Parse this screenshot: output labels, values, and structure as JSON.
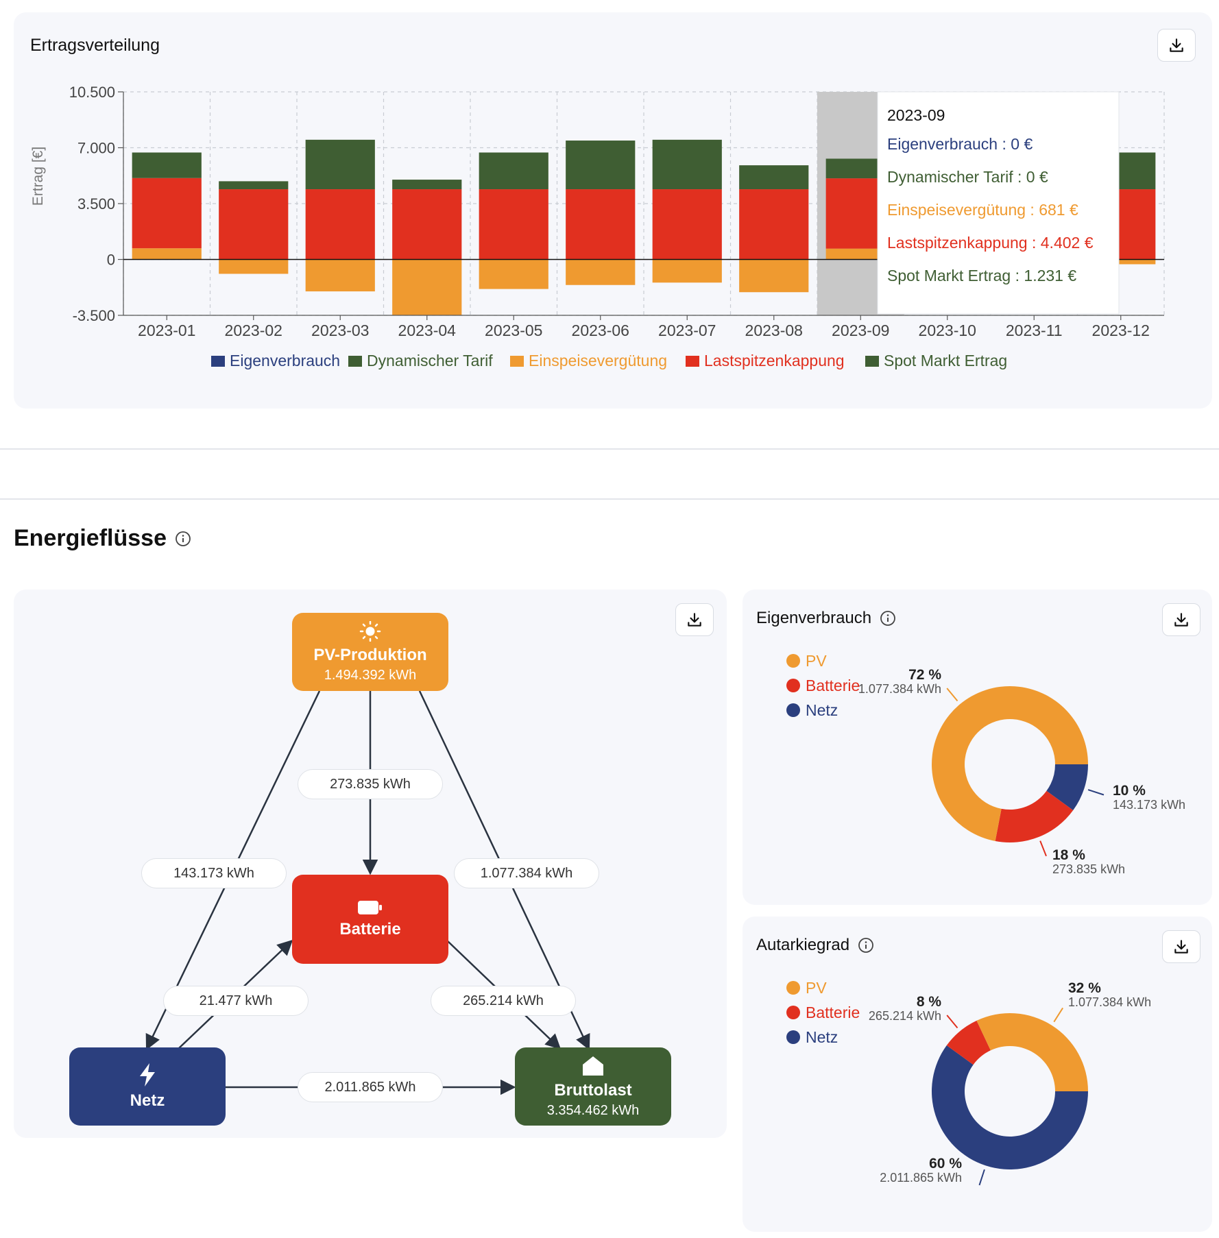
{
  "colors": {
    "eigenverbrauch": "#2b3f7e",
    "dynamisch": "#3f5e33",
    "einspeise": "#ef9a30",
    "lastspitzen": "#e1301f",
    "spot": "#3f5e33",
    "pv": "#ef9a30",
    "batterie": "#e1301f",
    "netz": "#2b3f7e",
    "brutto": "#3f5e33"
  },
  "ertrag": {
    "title": "Ertragsverteilung",
    "download_icon": "download-icon",
    "chart_data": {
      "type": "bar",
      "title": "Ertragsverteilung",
      "ylabel": "Ertrag [€]",
      "xlabel": "",
      "ylim": [
        -3500,
        10500
      ],
      "yticks": [
        "10.500",
        "7.000",
        "3.500",
        "0",
        "-3.500"
      ],
      "ytick_values": [
        10500,
        7000,
        3500,
        0,
        -3500
      ],
      "categories": [
        "2023-01",
        "2023-02",
        "2023-03",
        "2023-04",
        "2023-05",
        "2023-06",
        "2023-07",
        "2023-08",
        "2023-09",
        "2023-10",
        "2023-11",
        "2023-12"
      ],
      "series": [
        {
          "name": "Eigenverbrauch",
          "values": [
            0,
            0,
            0,
            0,
            0,
            0,
            0,
            0,
            0,
            0,
            0,
            0
          ]
        },
        {
          "name": "Dynamischer Tarif",
          "values": [
            0,
            0,
            0,
            0,
            0,
            0,
            0,
            0,
            0,
            0,
            0,
            0
          ]
        },
        {
          "name": "Einspeisevergütung",
          "values": [
            700,
            -900,
            -2000,
            -3500,
            -1850,
            -1600,
            -1450,
            -2050,
            681,
            0,
            0,
            -300
          ]
        },
        {
          "name": "Lastspitzenkappung",
          "values": [
            4400,
            4400,
            4400,
            4400,
            4400,
            4400,
            4400,
            4400,
            4402,
            0,
            0,
            4400
          ]
        },
        {
          "name": "Spot Markt Ertrag",
          "values": [
            1600,
            500,
            3100,
            600,
            2300,
            3050,
            3100,
            1500,
            1231,
            0,
            0,
            2300
          ]
        }
      ],
      "highlighted_category": "2023-09"
    },
    "legend": [
      {
        "label": "Eigenverbrauch"
      },
      {
        "label": "Dynamischer Tarif"
      },
      {
        "label": "Einspeisevergütung"
      },
      {
        "label": "Lastspitzenkappung"
      },
      {
        "label": "Spot Markt Ertrag"
      }
    ],
    "tooltip": {
      "title": "2023-09",
      "rows": [
        "Eigenverbrauch : 0 €",
        "Dynamischer Tarif : 0 €",
        "Einspeisevergütung : 681 €",
        "Lastspitzenkappung : 4.402 €",
        "Spot Markt Ertrag : 1.231 €"
      ]
    }
  },
  "energie": {
    "heading": "Energieflüsse",
    "flow": {
      "pv": {
        "title": "PV-Produktion",
        "value": "1.494.392 kWh"
      },
      "batterie": {
        "title": "Batterie"
      },
      "netz": {
        "title": "Netz"
      },
      "brutto": {
        "title": "Bruttolast",
        "value": "3.354.462 kWh"
      },
      "labels": {
        "pv_batterie": "273.835 kWh",
        "pv_netz": "143.173 kWh",
        "pv_brutto": "1.077.384 kWh",
        "netz_batterie": "21.477 kWh",
        "batterie_brutto": "265.214 kWh",
        "netz_brutto": "2.011.865 kWh"
      }
    },
    "eigenverbrauch": {
      "title": "Eigenverbrauch",
      "legend": [
        "PV",
        "Batterie",
        "Netz"
      ],
      "chart_data": {
        "type": "pie",
        "categories": [
          "PV",
          "Batterie",
          "Netz"
        ],
        "values": [
          72,
          18,
          10
        ],
        "pct_labels": [
          "72 %",
          "18 %",
          "10 %"
        ],
        "kwh_labels": [
          "1.077.384 kWh",
          "273.835 kWh",
          "143.173 kWh"
        ]
      }
    },
    "autarkie": {
      "title": "Autarkiegrad",
      "legend": [
        "PV",
        "Batterie",
        "Netz"
      ],
      "chart_data": {
        "type": "pie",
        "categories": [
          "PV",
          "Batterie",
          "Netz"
        ],
        "values": [
          32,
          8,
          60
        ],
        "pct_labels": [
          "32 %",
          "8 %",
          "60 %"
        ],
        "kwh_labels": [
          "1.077.384 kWh",
          "265.214 kWh",
          "2.011.865 kWh"
        ]
      }
    }
  }
}
